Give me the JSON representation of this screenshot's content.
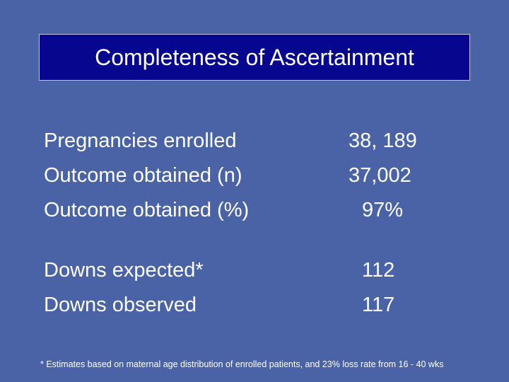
{
  "title": "Completeness of Ascertainment",
  "groups": [
    {
      "rows": [
        {
          "label": "Pregnancies enrolled",
          "value": "38, 189"
        },
        {
          "label": "Outcome obtained (n)",
          "value": "37,002"
        },
        {
          "label": "Outcome obtained (%)",
          "value": "97%"
        }
      ]
    },
    {
      "rows": [
        {
          "label": "Downs expected*",
          "value": "112"
        },
        {
          "label": "Downs observed",
          "value": "117"
        }
      ]
    }
  ],
  "footnote": "* Estimates based on maternal age distribution of enrolled patients, and 23% loss rate from 16 - 40 wks"
}
